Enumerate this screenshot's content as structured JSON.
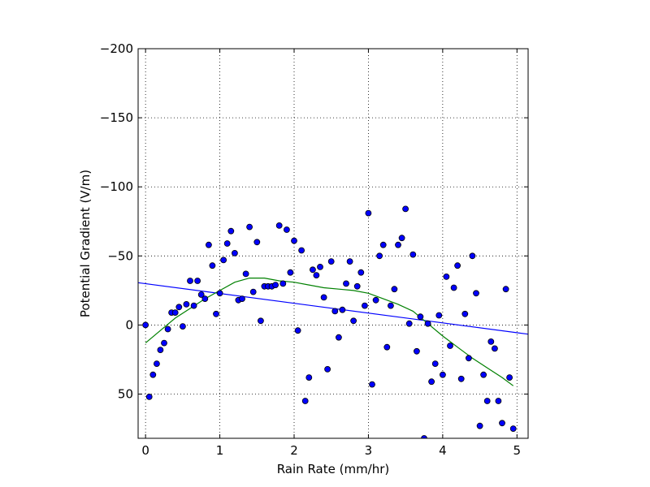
{
  "chart_data": {
    "type": "scatter",
    "title": "",
    "xlabel": "Rain Rate (mm/hr)",
    "ylabel": "Potential Gradient (V/m)",
    "xlim": [
      -0.1,
      5.15
    ],
    "ylim": [
      82,
      -200
    ],
    "y_inverted": true,
    "grid": true,
    "grid_style": "dotted",
    "xticks": [
      0,
      1,
      2,
      3,
      4,
      5
    ],
    "xtick_labels": [
      "0",
      "1",
      "2",
      "3",
      "4",
      "5"
    ],
    "yticks": [
      -200,
      -150,
      -100,
      -50,
      0,
      50
    ],
    "ytick_labels": [
      "−200",
      "−150",
      "−100",
      "−50",
      "0",
      "50"
    ],
    "colors": {
      "points_fill": "#0000ff",
      "points_edge": "#000000",
      "linear_fit": "#0000ff",
      "smooth_fit": "#008000"
    },
    "series": [
      {
        "kind": "scatter",
        "x": [
          0.0,
          0.05,
          0.1,
          0.15,
          0.2,
          0.25,
          0.3,
          0.35,
          0.4,
          0.45,
          0.5,
          0.55,
          0.6,
          0.65,
          0.7,
          0.75,
          0.8,
          0.85,
          0.9,
          0.95,
          1.0,
          1.05,
          1.1,
          1.15,
          1.2,
          1.25,
          1.3,
          1.35,
          1.4,
          1.45,
          1.5,
          1.55,
          1.6,
          1.65,
          1.7,
          1.75,
          1.8,
          1.85,
          1.9,
          1.95,
          2.0,
          2.05,
          2.1,
          2.15,
          2.2,
          2.25,
          2.3,
          2.35,
          2.4,
          2.45,
          2.5,
          2.55,
          2.6,
          2.65,
          2.7,
          2.75,
          2.8,
          2.85,
          2.9,
          2.95,
          3.0,
          3.05,
          3.1,
          3.15,
          3.2,
          3.25,
          3.3,
          3.35,
          3.4,
          3.45,
          3.5,
          3.55,
          3.6,
          3.65,
          3.7,
          3.75,
          3.8,
          3.85,
          3.9,
          3.95,
          4.0,
          4.05,
          4.1,
          4.15,
          4.2,
          4.25,
          4.3,
          4.35,
          4.4,
          4.45,
          4.5,
          4.55,
          4.6,
          4.65,
          4.7,
          4.75,
          4.8,
          4.85,
          4.9,
          4.95
        ],
        "y": [
          0,
          52,
          36,
          28,
          18,
          13,
          3,
          -9,
          -9,
          -13,
          1,
          -15,
          -32,
          -14,
          -32,
          -22,
          -19,
          -58,
          -43,
          -8,
          -23,
          -47,
          -59,
          -68,
          -52,
          -18,
          -19,
          -37,
          -71,
          -24,
          -60,
          -3,
          -28,
          -28,
          -28,
          -29,
          -72,
          -30,
          -69,
          -38,
          -61,
          4,
          -54,
          55,
          38,
          -40,
          -36,
          -42,
          -20,
          32,
          -46,
          -10,
          9,
          -11,
          -30,
          -46,
          -3,
          -28,
          -38,
          -14,
          -81,
          43,
          -18,
          -50,
          -58,
          16,
          -14,
          -26,
          -58,
          -63,
          -84,
          -1,
          -51,
          19,
          -6,
          82,
          -1,
          41,
          28,
          -7,
          36,
          -35,
          15,
          -27,
          -43,
          39,
          -8,
          24,
          -50,
          -23,
          73,
          36,
          55,
          12,
          17,
          55,
          71,
          -26,
          38,
          75
        ]
      },
      {
        "kind": "line",
        "fit": "linear",
        "x": [
          -0.1,
          5.15
        ],
        "y": [
          -30.6,
          6.6
        ]
      },
      {
        "kind": "line",
        "fit": "smooth",
        "x": [
          0.0,
          0.2,
          0.4,
          0.6,
          0.8,
          1.0,
          1.2,
          1.4,
          1.6,
          1.8,
          2.0,
          2.2,
          2.4,
          2.6,
          2.8,
          3.0,
          3.2,
          3.4,
          3.6,
          3.8,
          4.0,
          4.2,
          4.4,
          4.6,
          4.8,
          4.95
        ],
        "y": [
          13,
          4,
          -5,
          -12,
          -19,
          -25,
          -31,
          -34,
          -34,
          -32,
          -31,
          -29,
          -27,
          -26,
          -25,
          -23,
          -19,
          -15,
          -10,
          -1,
          8,
          16,
          24,
          31,
          38,
          44
        ]
      }
    ]
  }
}
